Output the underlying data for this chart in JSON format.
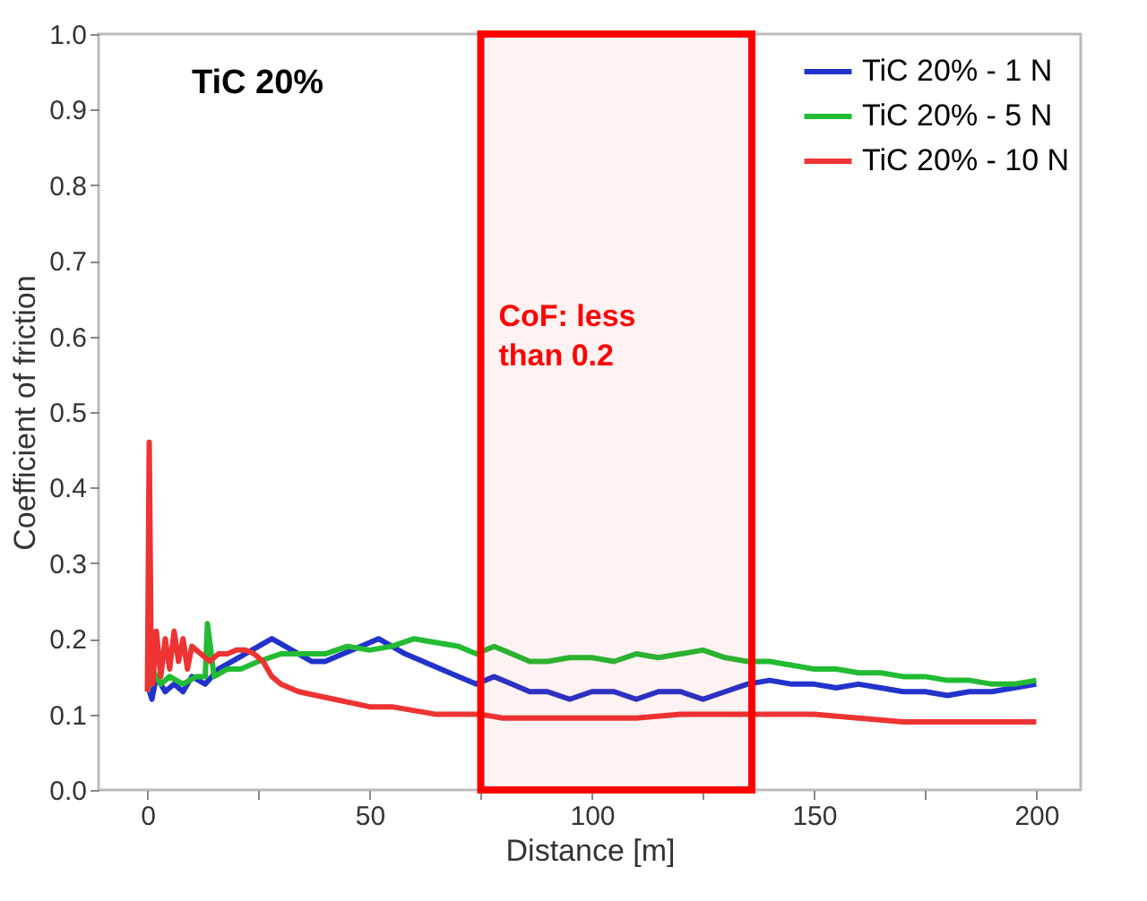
{
  "chart_data": {
    "type": "line",
    "title": "TiC 20%",
    "xlabel": "Distance [m]",
    "ylabel": "Coefficient of friction",
    "xlim": [
      -11,
      210
    ],
    "ylim": [
      0,
      1
    ],
    "xticks": [
      0,
      {
        "value": 25,
        "label": null
      },
      50,
      {
        "value": 75,
        "label": null
      },
      100,
      {
        "value": 125,
        "label": null
      },
      150,
      {
        "value": 175,
        "label": null
      },
      200
    ],
    "yticks": [
      {
        "value": 0,
        "label": "0.0"
      },
      {
        "value": 0.1,
        "label": "0.1"
      },
      {
        "value": 0.2,
        "label": "0.2"
      },
      {
        "value": 0.3,
        "label": "0.3"
      },
      {
        "value": 0.4,
        "label": "0.4"
      },
      {
        "value": 0.5,
        "label": "0.5"
      },
      {
        "value": 0.6,
        "label": "0.6"
      },
      {
        "value": 0.7,
        "label": "0.7"
      },
      {
        "value": 0.8,
        "label": "0.8"
      },
      {
        "value": 0.9,
        "label": "0.9"
      },
      {
        "value": 1,
        "label": "1.0"
      }
    ],
    "grid": false,
    "legend": "top right",
    "line_style": "solid",
    "marker": "none",
    "series": [
      {
        "name": "TiC 20% - 1 N",
        "color": "#2233cc",
        "x": [
          0,
          1,
          2,
          4,
          6,
          8,
          10,
          13,
          16,
          19,
          22,
          25,
          28,
          31,
          34,
          37,
          40,
          44,
          48,
          52,
          55,
          58,
          62,
          66,
          70,
          74,
          78,
          82,
          86,
          90,
          95,
          100,
          105,
          110,
          115,
          120,
          125,
          130,
          135,
          140,
          145,
          150,
          155,
          160,
          165,
          170,
          175,
          180,
          185,
          190,
          195,
          200
        ],
        "values": [
          0.14,
          0.12,
          0.15,
          0.13,
          0.14,
          0.13,
          0.15,
          0.14,
          0.16,
          0.17,
          0.18,
          0.19,
          0.2,
          0.19,
          0.18,
          0.17,
          0.17,
          0.18,
          0.19,
          0.2,
          0.19,
          0.18,
          0.17,
          0.16,
          0.15,
          0.14,
          0.15,
          0.14,
          0.13,
          0.13,
          0.12,
          0.13,
          0.13,
          0.12,
          0.13,
          0.13,
          0.12,
          0.13,
          0.14,
          0.145,
          0.14,
          0.14,
          0.135,
          0.14,
          0.135,
          0.13,
          0.13,
          0.125,
          0.13,
          0.13,
          0.135,
          0.14
        ]
      },
      {
        "name": "TiC 20% - 5 N",
        "color": "#22bb33",
        "x": [
          0,
          1,
          3,
          5,
          8,
          11,
          13,
          13.5,
          15,
          18,
          21,
          25,
          30,
          35,
          40,
          45,
          50,
          55,
          60,
          65,
          70,
          74,
          78,
          82,
          86,
          90,
          95,
          100,
          105,
          110,
          115,
          120,
          125,
          130,
          135,
          140,
          145,
          150,
          155,
          160,
          165,
          170,
          175,
          180,
          185,
          190,
          195,
          200
        ],
        "values": [
          0.13,
          0.16,
          0.14,
          0.15,
          0.14,
          0.15,
          0.15,
          0.22,
          0.15,
          0.16,
          0.16,
          0.17,
          0.18,
          0.18,
          0.18,
          0.19,
          0.185,
          0.19,
          0.2,
          0.195,
          0.19,
          0.18,
          0.19,
          0.18,
          0.17,
          0.17,
          0.175,
          0.175,
          0.17,
          0.18,
          0.175,
          0.18,
          0.185,
          0.175,
          0.17,
          0.17,
          0.165,
          0.16,
          0.16,
          0.155,
          0.155,
          0.15,
          0.15,
          0.145,
          0.145,
          0.14,
          0.14,
          0.145
        ]
      },
      {
        "name": "TiC 20% - 10 N",
        "color": "#ee3333",
        "x": [
          0,
          0.4,
          0.8,
          1.2,
          2,
          3,
          4,
          5,
          6,
          7,
          8,
          9,
          10,
          12,
          14,
          16,
          18,
          20,
          22,
          24,
          26,
          28,
          30,
          34,
          38,
          42,
          46,
          50,
          55,
          60,
          65,
          70,
          75,
          80,
          90,
          100,
          110,
          120,
          130,
          140,
          150,
          160,
          170,
          180,
          190,
          200
        ],
        "values": [
          0.13,
          0.46,
          0.2,
          0.14,
          0.21,
          0.15,
          0.2,
          0.16,
          0.21,
          0.17,
          0.2,
          0.16,
          0.19,
          0.18,
          0.17,
          0.18,
          0.18,
          0.185,
          0.185,
          0.18,
          0.17,
          0.15,
          0.14,
          0.13,
          0.125,
          0.12,
          0.115,
          0.11,
          0.11,
          0.105,
          0.1,
          0.1,
          0.1,
          0.095,
          0.095,
          0.095,
          0.095,
          0.1,
          0.1,
          0.1,
          0.1,
          0.095,
          0.09,
          0.09,
          0.09,
          0.09
        ]
      }
    ],
    "bands": [
      {
        "axis": "x",
        "from": 75,
        "to": 136,
        "color": "#ff0000",
        "label": "CoF: less\nthan 0.2"
      }
    ]
  }
}
